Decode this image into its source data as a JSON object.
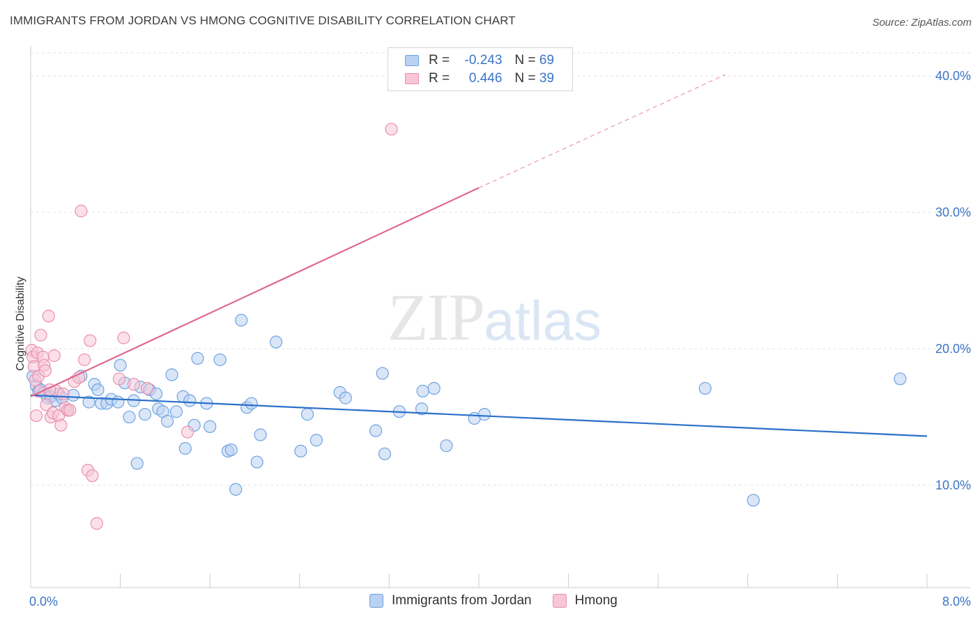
{
  "chart_data": {
    "type": "scatter",
    "title": "IMMIGRANTS FROM JORDAN VS HMONG COGNITIVE DISABILITY CORRELATION CHART",
    "source": "Source: ZipAtlas.com",
    "xlabel": "",
    "ylabel": "Cognitive Disability",
    "xlim": [
      0,
      8
    ],
    "ylim": [
      2.5,
      42.2
    ],
    "x_tick_labels": [
      "0.0%",
      "8.0%"
    ],
    "y_ticks": [
      10,
      20,
      30,
      40
    ],
    "y_tick_labels": [
      "10.0%",
      "20.0%",
      "30.0%",
      "40.0%"
    ],
    "grid": true,
    "watermark": {
      "zip": "ZIP",
      "atlas": "atlas"
    },
    "legend": [
      {
        "r_label": "R =",
        "r_value": "-0.243",
        "n_label": "N =",
        "n_value": "69"
      },
      {
        "r_label": "R =",
        "r_value": "0.446",
        "n_label": "N =",
        "n_value": "39"
      }
    ],
    "series": [
      {
        "name": "Immigrants from Jordan",
        "color": "#6fa3e0",
        "fill": "#b9d1f2",
        "line_color": "#2a6fc9",
        "trend": {
          "x": [
            0.0,
            8.0
          ],
          "y": [
            16.6,
            13.6
          ],
          "dashed_to": null
        },
        "points": [
          [
            0.02,
            18.0
          ],
          [
            0.05,
            17.3
          ],
          [
            0.07,
            16.9
          ],
          [
            0.09,
            17.0
          ],
          [
            0.12,
            16.8
          ],
          [
            0.15,
            16.4
          ],
          [
            0.18,
            16.5
          ],
          [
            0.22,
            16.2
          ],
          [
            0.25,
            16.7
          ],
          [
            0.28,
            16.4
          ],
          [
            0.33,
            15.5
          ],
          [
            0.38,
            16.6
          ],
          [
            0.45,
            18.0
          ],
          [
            0.52,
            16.1
          ],
          [
            0.57,
            17.4
          ],
          [
            0.6,
            17.0
          ],
          [
            0.63,
            16.0
          ],
          [
            0.68,
            16.0
          ],
          [
            0.72,
            16.3
          ],
          [
            0.78,
            16.1
          ],
          [
            0.8,
            18.8
          ],
          [
            0.84,
            17.5
          ],
          [
            0.88,
            15.0
          ],
          [
            0.92,
            16.2
          ],
          [
            0.95,
            11.6
          ],
          [
            0.98,
            17.2
          ],
          [
            1.02,
            15.2
          ],
          [
            1.06,
            17.0
          ],
          [
            1.12,
            16.7
          ],
          [
            1.14,
            15.6
          ],
          [
            1.18,
            15.4
          ],
          [
            1.22,
            14.7
          ],
          [
            1.26,
            18.1
          ],
          [
            1.3,
            15.4
          ],
          [
            1.36,
            16.5
          ],
          [
            1.38,
            12.7
          ],
          [
            1.42,
            16.2
          ],
          [
            1.46,
            14.4
          ],
          [
            1.49,
            19.3
          ],
          [
            1.57,
            16.0
          ],
          [
            1.6,
            14.3
          ],
          [
            1.69,
            19.2
          ],
          [
            1.76,
            12.5
          ],
          [
            1.79,
            12.6
          ],
          [
            1.83,
            9.7
          ],
          [
            1.88,
            22.1
          ],
          [
            1.93,
            15.7
          ],
          [
            1.97,
            16.0
          ],
          [
            2.02,
            11.7
          ],
          [
            2.05,
            13.7
          ],
          [
            2.19,
            20.5
          ],
          [
            2.41,
            12.5
          ],
          [
            2.47,
            15.2
          ],
          [
            2.55,
            13.3
          ],
          [
            2.76,
            16.8
          ],
          [
            2.81,
            16.4
          ],
          [
            3.08,
            14.0
          ],
          [
            3.14,
            18.2
          ],
          [
            3.16,
            12.3
          ],
          [
            3.29,
            15.4
          ],
          [
            3.49,
            15.6
          ],
          [
            3.5,
            16.9
          ],
          [
            3.6,
            17.1
          ],
          [
            3.71,
            12.9
          ],
          [
            3.96,
            14.9
          ],
          [
            4.05,
            15.2
          ],
          [
            6.02,
            17.1
          ],
          [
            6.45,
            8.9
          ],
          [
            7.76,
            17.8
          ]
        ]
      },
      {
        "name": "Hmong",
        "color": "#ea8fb0",
        "fill": "#f8c6d6",
        "line_color": "#e0668f",
        "trend": {
          "x": [
            0.0,
            4.0
          ],
          "y": [
            16.5,
            31.8
          ],
          "dashed_to": [
            6.2,
            40.1
          ]
        },
        "points": [
          [
            0.01,
            19.9
          ],
          [
            0.02,
            19.4
          ],
          [
            0.03,
            18.7
          ],
          [
            0.04,
            17.7
          ],
          [
            0.05,
            15.1
          ],
          [
            0.06,
            19.7
          ],
          [
            0.07,
            18.0
          ],
          [
            0.08,
            16.9
          ],
          [
            0.09,
            21.0
          ],
          [
            0.11,
            19.4
          ],
          [
            0.12,
            18.8
          ],
          [
            0.13,
            18.4
          ],
          [
            0.14,
            15.9
          ],
          [
            0.16,
            22.4
          ],
          [
            0.18,
            15.0
          ],
          [
            0.2,
            15.3
          ],
          [
            0.21,
            19.5
          ],
          [
            0.23,
            16.9
          ],
          [
            0.25,
            15.1
          ],
          [
            0.27,
            14.4
          ],
          [
            0.29,
            16.7
          ],
          [
            0.31,
            15.7
          ],
          [
            0.33,
            15.5
          ],
          [
            0.35,
            15.5
          ],
          [
            0.39,
            17.6
          ],
          [
            0.43,
            17.9
          ],
          [
            0.45,
            30.1
          ],
          [
            0.48,
            19.2
          ],
          [
            0.51,
            11.1
          ],
          [
            0.53,
            20.6
          ],
          [
            0.55,
            10.7
          ],
          [
            0.59,
            7.2
          ],
          [
            0.79,
            17.8
          ],
          [
            0.83,
            20.8
          ],
          [
            0.92,
            17.4
          ],
          [
            1.04,
            17.1
          ],
          [
            1.4,
            13.9
          ],
          [
            3.22,
            36.1
          ],
          [
            0.17,
            17.0
          ]
        ]
      }
    ]
  }
}
